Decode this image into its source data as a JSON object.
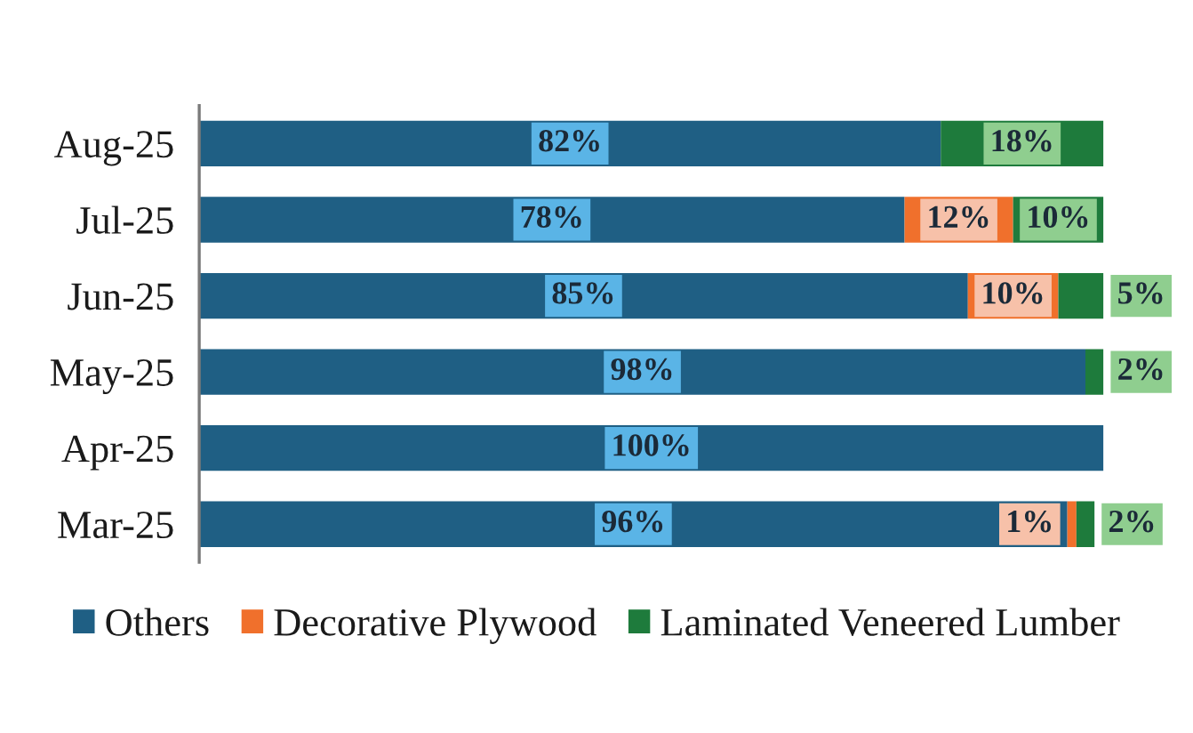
{
  "chart_data": {
    "type": "bar",
    "orientation": "horizontal",
    "stacked": true,
    "tick_labels": "y",
    "legend": "bottom",
    "categories": [
      "Aug-25",
      "Jul-25",
      "Jun-25",
      "May-25",
      "Apr-25",
      "Mar-25"
    ],
    "series": [
      {
        "name": "Others",
        "color": "#1f5f84",
        "values": [
          82,
          78,
          85,
          98,
          100,
          96
        ],
        "value_labels": [
          "82%",
          "78%",
          "85%",
          "98%",
          "100%",
          "96%"
        ]
      },
      {
        "name": "Decorative Plywood",
        "color": "#f0702c",
        "values": [
          0,
          12,
          10,
          0,
          0,
          1
        ],
        "value_labels": [
          null,
          "12%",
          "10%",
          null,
          null,
          "1%"
        ]
      },
      {
        "name": "Laminated Veneered Lumber",
        "color": "#1e7b3c",
        "values": [
          18,
          10,
          5,
          2,
          0,
          2
        ],
        "value_labels": [
          "18%",
          "10%",
          "5%",
          "2%",
          null,
          "2%"
        ]
      }
    ]
  }
}
